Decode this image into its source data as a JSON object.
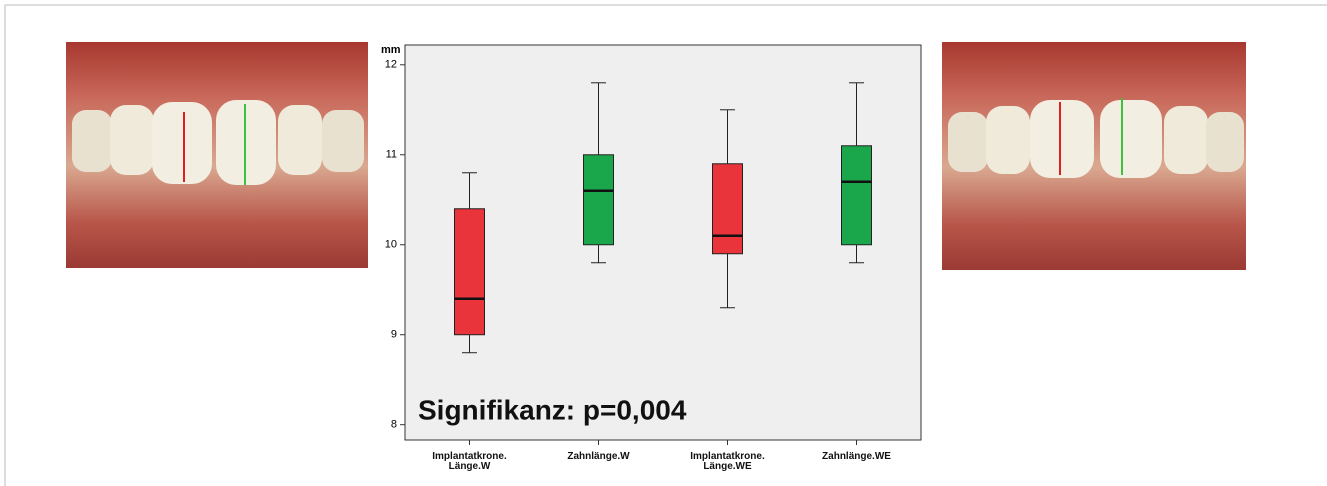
{
  "chart_data": {
    "type": "box",
    "y_label": "mm",
    "annotation": "Signifikanz: p=0,004",
    "categories": [
      "Implantatkrone. Länge.W",
      "Zahnlänge.W",
      "Implantatkrone. Länge.WE",
      "Zahnlänge.WE"
    ],
    "min": [
      8.8,
      9.8,
      9.3,
      9.8
    ],
    "q1": [
      9.0,
      10.0,
      9.9,
      10.0
    ],
    "median": [
      9.4,
      10.6,
      10.1,
      10.7
    ],
    "q3": [
      10.4,
      11.0,
      10.9,
      11.1
    ],
    "max": [
      10.8,
      11.8,
      11.5,
      11.8
    ],
    "colors": [
      "#e8343a",
      "#1aa64a",
      "#e8343a",
      "#1aa64a"
    ],
    "ylim": [
      7.83,
      12.22
    ],
    "yticks": [
      8,
      9,
      10,
      11,
      12
    ],
    "grid": false
  }
}
